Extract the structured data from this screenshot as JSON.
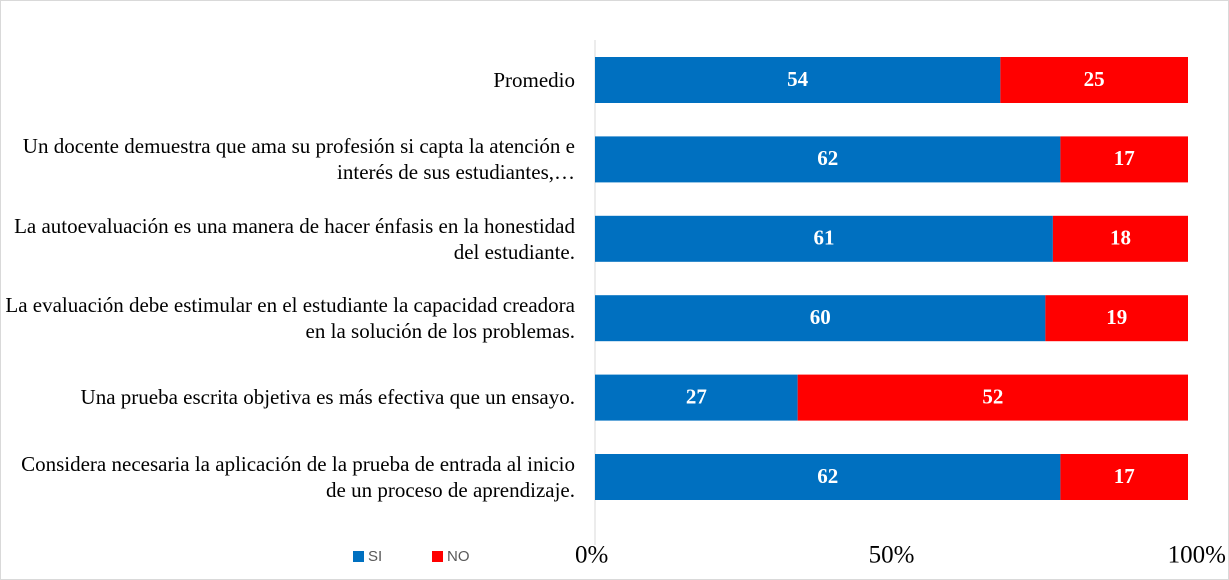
{
  "chart_data": {
    "type": "bar",
    "orientation": "horizontal",
    "stacked": true,
    "normalize": true,
    "categories": [
      "Promedio",
      "Un docente demuestra que ama su profesión si capta la atención e interés de sus estudiantes,…",
      "La autoevaluación es una manera de hacer énfasis en la honestidad del estudiante.",
      "La evaluación debe estimular en el estudiante la capacidad creadora en la solución de los problemas.",
      "Una prueba escrita objetiva es más efectiva que un ensayo.",
      "Considera necesaria la aplicación de la prueba de entrada al inicio de un proceso de aprendizaje."
    ],
    "series": [
      {
        "name": "SI",
        "color": "#0070c0",
        "values": [
          54,
          62,
          61,
          60,
          27,
          62
        ]
      },
      {
        "name": "NO",
        "color": "#ff0000",
        "values": [
          25,
          17,
          18,
          19,
          52,
          17
        ]
      }
    ],
    "xlim": [
      0,
      100
    ],
    "xticks": [
      {
        "value": 0,
        "label": "0%"
      },
      {
        "value": 50,
        "label": "50%"
      },
      {
        "value": 100,
        "label": "100%"
      }
    ],
    "legend": "bottom"
  }
}
